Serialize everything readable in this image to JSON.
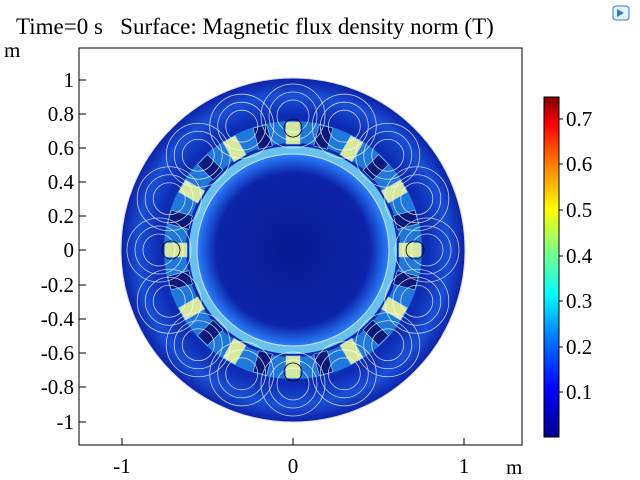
{
  "title": "Time=0 s   Surface: Magnetic flux density norm (T)",
  "axes": {
    "y_unit": "m",
    "x_unit": "m",
    "y_ticks": [
      "1",
      "0.8",
      "0.6",
      "0.4",
      "0.2",
      "0",
      "-0.2",
      "-0.4",
      "-0.6",
      "-0.8",
      "-1"
    ],
    "x_ticks": [
      "-1",
      "0",
      "1"
    ]
  },
  "colorbar": {
    "ticks": [
      "0.7",
      "0.6",
      "0.5",
      "0.4",
      "0.3",
      "0.2",
      "0.1"
    ],
    "range": [
      0,
      0.75
    ]
  },
  "icons": {
    "corner": "comsol-logo-icon"
  },
  "colors": {
    "background": "#ffffff",
    "field_low": "#0a1f9e",
    "field_high": "#7f0000"
  }
}
